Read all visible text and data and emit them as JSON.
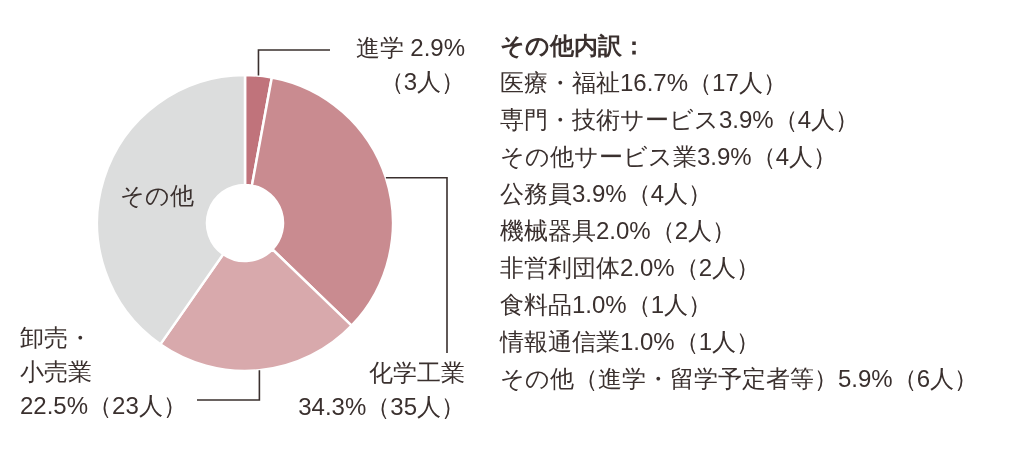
{
  "chart_data": {
    "type": "donut",
    "categories": [
      "進学",
      "化学工業",
      "卸売・小売業",
      "その他"
    ],
    "values": [
      2.9,
      34.3,
      22.5,
      40.3
    ],
    "colors": [
      "#c0737b",
      "#c98b90",
      "#d8a9ac",
      "#dcdddd"
    ],
    "value_labels": [
      "2.9%（3人）",
      "34.3%（35人）",
      "22.5%（23人）",
      null
    ],
    "annotations": [
      "その他内訳：",
      "医療・福祉16.7%（17人）",
      "専門・技術サービス3.9%（4人）",
      "その他サービス業3.9%（4人）",
      "公務員3.9%（4人）",
      "機械器具2.0%（2人）",
      "非営利団体2.0%（2人）",
      "食料品1.0%（1人）",
      "情報通信業1.0%（1人）",
      "その他（進学・留学予定者等）5.9%（6人）"
    ]
  }
}
